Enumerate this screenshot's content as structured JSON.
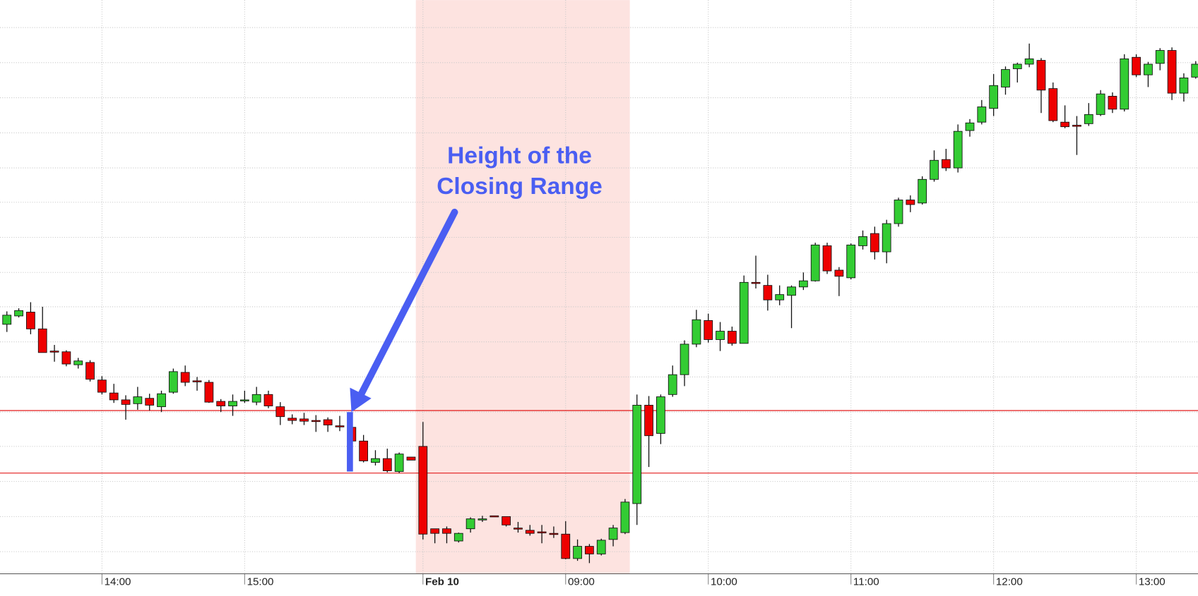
{
  "chart_data": {
    "type": "candlestick",
    "annotation": [
      "Height of the",
      "Closing Range"
    ],
    "categories": [
      null,
      null,
      null,
      null,
      null,
      null,
      null,
      null,
      "14:00",
      null,
      null,
      null,
      null,
      null,
      null,
      null,
      null,
      null,
      null,
      null,
      "15:00",
      null,
      null,
      null,
      null,
      null,
      null,
      null,
      null,
      null,
      null,
      null,
      null,
      null,
      null,
      "Feb 10",
      null,
      null,
      null,
      null,
      null,
      null,
      null,
      null,
      null,
      null,
      null,
      "09:00",
      null,
      null,
      null,
      null,
      null,
      null,
      null,
      null,
      null,
      null,
      null,
      "10:00",
      null,
      null,
      null,
      null,
      null,
      null,
      null,
      null,
      null,
      null,
      null,
      "11:00",
      null,
      null,
      null,
      null,
      null,
      null,
      null,
      null,
      null,
      null,
      null,
      "12:00",
      null,
      null,
      null,
      null,
      null,
      null,
      null,
      null,
      null,
      null,
      null,
      "13:00",
      null,
      null,
      null,
      null,
      null
    ],
    "bold_label_index": 35,
    "open": [
      335,
      346,
      351,
      329,
      300,
      299,
      282,
      285,
      262,
      245,
      236,
      231,
      238,
      227,
      246,
      272,
      261,
      259,
      234,
      228,
      235,
      233,
      243,
      227,
      212,
      211,
      209,
      210,
      202,
      200,
      182,
      154,
      159,
      142,
      161,
      175,
      67,
      67,
      51,
      67,
      79,
      84,
      83,
      68,
      65,
      63,
      61,
      60,
      28,
      44,
      34,
      53,
      62,
      100,
      229,
      192,
      243,
      269,
      309,
      340,
      315,
      326,
      310,
      390,
      386,
      367,
      373,
      384,
      392,
      438,
      406,
      396,
      438,
      454,
      430,
      467,
      498,
      494,
      525,
      551,
      540,
      589,
      600,
      618,
      646,
      670,
      676,
      681,
      644,
      600,
      596,
      598,
      610,
      634,
      617,
      685,
      662,
      677,
      694,
      638,
      659
    ],
    "high": [
      352,
      356,
      364,
      358,
      308,
      301,
      291,
      288,
      267,
      257,
      242,
      253,
      244,
      248,
      277,
      281,
      266,
      262,
      237,
      243,
      248,
      253,
      248,
      233,
      217,
      219,
      216,
      213,
      215,
      204,
      190,
      170,
      172,
      167,
      161,
      207,
      67,
      70,
      62,
      82,
      84,
      84,
      83,
      76,
      72,
      72,
      70,
      77,
      53,
      47,
      54,
      72,
      106,
      243,
      241,
      243,
      281,
      314,
      354,
      349,
      338,
      332,
      399,
      425,
      400,
      386,
      386,
      403,
      442,
      442,
      410,
      441,
      458,
      463,
      472,
      501,
      504,
      529,
      563,
      565,
      597,
      604,
      629,
      663,
      673,
      678,
      703,
      684,
      652,
      622,
      608,
      625,
      642,
      639,
      689,
      689,
      679,
      697,
      698,
      664,
      680
    ],
    "low": [
      325,
      344,
      322,
      298,
      286,
      280,
      277,
      260,
      243,
      232,
      210,
      223,
      222,
      220,
      244,
      254,
      248,
      232,
      220,
      215,
      232,
      229,
      225,
      203,
      204,
      203,
      194,
      194,
      195,
      180,
      154,
      150,
      141,
      140,
      157,
      53,
      48,
      48,
      49,
      62,
      76,
      83,
      70,
      62,
      58,
      48,
      55,
      27,
      25,
      22,
      32,
      44,
      60,
      72,
      148,
      178,
      240,
      254,
      305,
      311,
      300,
      307,
      310,
      382,
      353,
      360,
      330,
      380,
      391,
      401,
      372,
      394,
      433,
      420,
      415,
      463,
      482,
      492,
      522,
      536,
      534,
      581,
      597,
      608,
      636,
      652,
      672,
      612,
      600,
      592,
      557,
      595,
      608,
      612,
      614,
      659,
      646,
      668,
      629,
      627,
      657
    ],
    "close": [
      347,
      353,
      329,
      298,
      299,
      283,
      287,
      263,
      246,
      236,
      230,
      240,
      229,
      244,
      273,
      259,
      260,
      233,
      228,
      234,
      236,
      243,
      228,
      214,
      209,
      208,
      208,
      203,
      201,
      182,
      156,
      159,
      143,
      165,
      157,
      60,
      61,
      61,
      61,
      80,
      80,
      83,
      72,
      67,
      61,
      62,
      60,
      28,
      44,
      34,
      52,
      68,
      102,
      229,
      189,
      240,
      269,
      309,
      341,
      315,
      326,
      310,
      390,
      389,
      367,
      374,
      384,
      392,
      439,
      405,
      398,
      439,
      450,
      430,
      467,
      498,
      492,
      525,
      550,
      540,
      588,
      599,
      620,
      648,
      669,
      676,
      683,
      642,
      602,
      594,
      595,
      610,
      637,
      617,
      683,
      662,
      676,
      694,
      638,
      658,
      676
    ],
    "up_color": "#33cc33",
    "down_color": "#ee0000",
    "ylim": [
      8,
      760
    ],
    "yticks": [
      37,
      83,
      129,
      175,
      220,
      266,
      312,
      358,
      403,
      449,
      495,
      540,
      586,
      632,
      678,
      724
    ],
    "grid": true,
    "hlines": [
      222,
      140
    ],
    "hline_color": "#e00000",
    "highlight": [
      34.4,
      52.4
    ],
    "highlight_color": "#fde3e0"
  }
}
